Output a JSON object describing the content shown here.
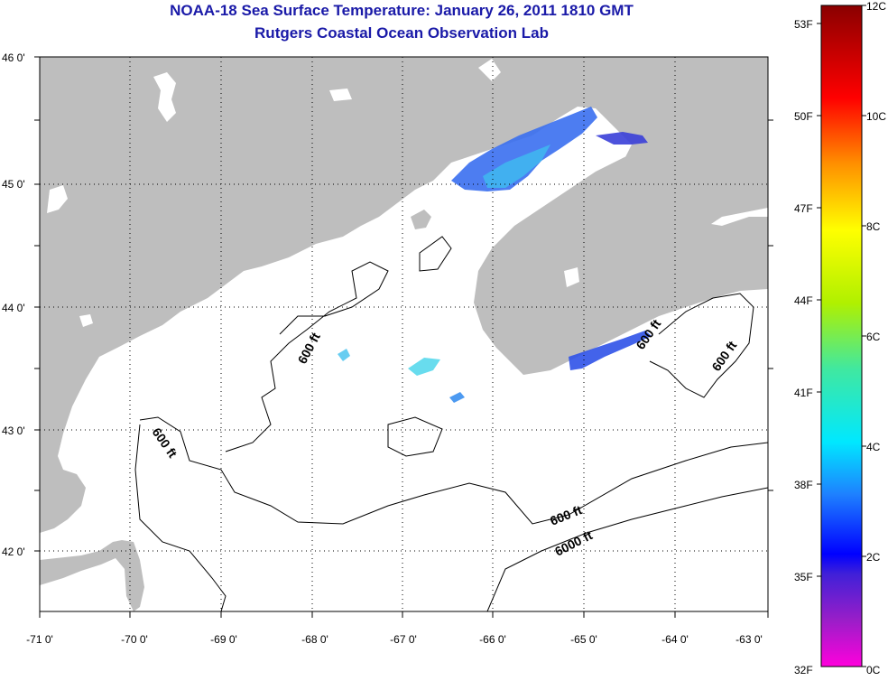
{
  "title": "NOAA-18 Sea Surface Temperature:  January 26, 2011 1810 GMT",
  "subtitle": "Rutgers Coastal Ocean Observation Lab",
  "latitude_labels": [
    "46 0'",
    "45 0'",
    "44 0'",
    "43 0'",
    "42 0'"
  ],
  "longitude_labels": [
    "-71 0'",
    "-70 0'",
    "-69 0'",
    "-68 0'",
    "-67 0'",
    "-66 0'",
    "-65 0'",
    "-64 0'",
    "-63 0'"
  ],
  "contour_labels": [
    "600 ft",
    "600 ft",
    "600 ft",
    "600 ft",
    "600 ft",
    "6000 ft"
  ],
  "colorbar": {
    "fahrenheit_labels": [
      "53F",
      "50F",
      "47F",
      "44F",
      "41F",
      "38F",
      "35F",
      "32F"
    ],
    "celsius_labels": [
      "12C",
      "10C",
      "8C",
      "6C",
      "4C",
      "2C",
      "0C"
    ]
  },
  "colors": {
    "title": "#1a1aa8",
    "land": "#bebebe",
    "water": "#ffffff",
    "sst_cold": "#3a5fe0",
    "sst_cyan": "#4fd0f0"
  }
}
